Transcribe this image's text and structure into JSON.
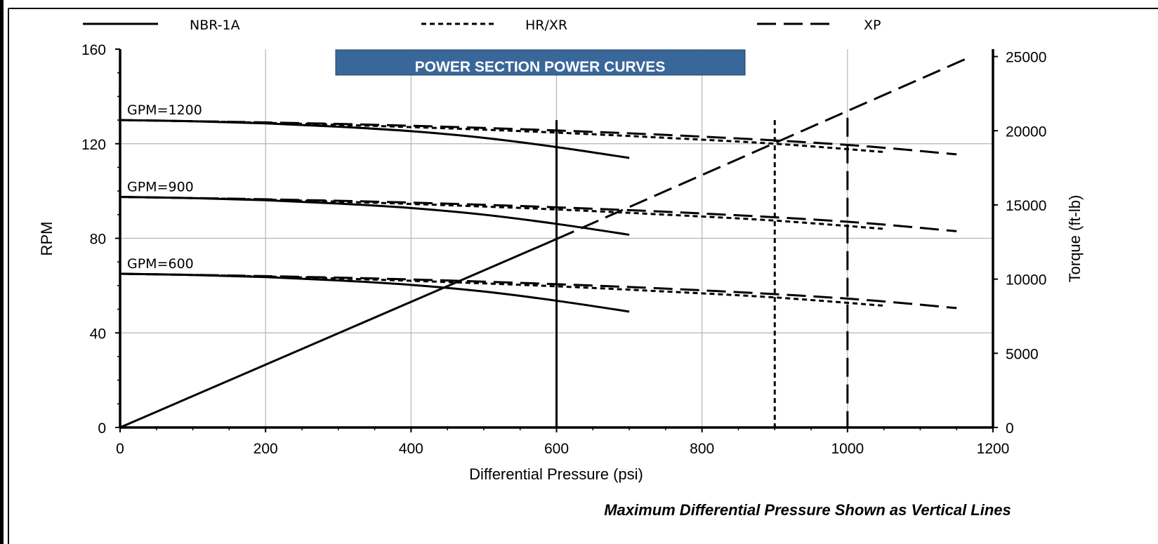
{
  "chart_data": {
    "type": "line",
    "title": "POWER SECTION POWER CURVES",
    "xlabel": "Differential Pressure (psi)",
    "ylabel": "RPM",
    "y2label": "Torque (ft-lb)",
    "xlim": [
      0,
      1200
    ],
    "ylim": [
      0,
      160
    ],
    "y2lim": [
      0,
      25500
    ],
    "x_ticks": [
      0,
      200,
      400,
      600,
      800,
      1000,
      1200
    ],
    "y_ticks": [
      0,
      40,
      80,
      120,
      160
    ],
    "y2_ticks": [
      0,
      5000,
      10000,
      15000,
      20000,
      25000
    ],
    "x_tick_labels": [
      "0",
      "200",
      "400",
      "600",
      "800",
      "1000",
      "1200"
    ],
    "y_tick_labels": [
      "0",
      "40",
      "80",
      "120",
      "160"
    ],
    "y2_tick_labels": [
      "0",
      "5000",
      "10000",
      "15000",
      "20000",
      "25000"
    ],
    "grid": true,
    "legend_position": "top",
    "legend": [
      {
        "label": "NBR-1A",
        "style": "solid"
      },
      {
        "label": "HR/XR",
        "style": "dotted"
      },
      {
        "label": "XP",
        "style": "dashed"
      }
    ],
    "flow_labels": [
      {
        "text": "GPM=1200",
        "rpm": 130
      },
      {
        "text": "GPM=900",
        "rpm": 97.5
      },
      {
        "text": "GPM=600",
        "rpm": 65
      }
    ],
    "rpm_curves": [
      {
        "name": "NBR-1A",
        "gpm": 1200,
        "x": [
          0,
          100,
          200,
          300,
          400,
          500,
          600,
          700
        ],
        "y": [
          130,
          129.5,
          128.6,
          127.2,
          125.3,
          122.5,
          118.6,
          114
        ]
      },
      {
        "name": "NBR-1A",
        "gpm": 900,
        "x": [
          0,
          100,
          200,
          300,
          400,
          500,
          600,
          700
        ],
        "y": [
          97.5,
          97,
          96.1,
          94.7,
          92.8,
          90,
          86.1,
          81.5
        ]
      },
      {
        "name": "NBR-1A",
        "gpm": 600,
        "x": [
          0,
          100,
          200,
          300,
          400,
          500,
          600,
          700
        ],
        "y": [
          65,
          64.5,
          63.6,
          62.2,
          60.3,
          57.5,
          53.6,
          49
        ]
      },
      {
        "name": "HR/XR",
        "gpm": 1200,
        "x": [
          0,
          150,
          300,
          450,
          600,
          750,
          900,
          1050
        ],
        "y": [
          130,
          129.2,
          128,
          126.5,
          124.7,
          122.5,
          120,
          116.5
        ]
      },
      {
        "name": "HR/XR",
        "gpm": 900,
        "x": [
          0,
          150,
          300,
          450,
          600,
          750,
          900,
          1050
        ],
        "y": [
          97.5,
          96.7,
          95.5,
          94,
          92.2,
          90,
          87.5,
          84
        ]
      },
      {
        "name": "HR/XR",
        "gpm": 600,
        "x": [
          0,
          150,
          300,
          450,
          600,
          750,
          900,
          1050
        ],
        "y": [
          65,
          64.2,
          63,
          61.5,
          59.7,
          57.5,
          55,
          51.5
        ]
      },
      {
        "name": "XP",
        "gpm": 1200,
        "x": [
          0,
          200,
          400,
          600,
          800,
          1000,
          1150
        ],
        "y": [
          130,
          129,
          127.6,
          125.6,
          123,
          119.5,
          115.5
        ]
      },
      {
        "name": "XP",
        "gpm": 900,
        "x": [
          0,
          200,
          400,
          600,
          800,
          1000,
          1150
        ],
        "y": [
          97.5,
          96.5,
          95.1,
          93.1,
          90.5,
          87,
          83
        ]
      },
      {
        "name": "XP",
        "gpm": 600,
        "x": [
          0,
          200,
          400,
          600,
          800,
          1000,
          1150
        ],
        "y": [
          65,
          64,
          62.6,
          60.6,
          58,
          54.5,
          50.5
        ]
      }
    ],
    "torque_lines": [
      {
        "name": "NBR-1A",
        "x": [
          0,
          600
        ],
        "y2": [
          0,
          12700
        ]
      },
      {
        "name": "XP",
        "x": [
          600,
          1170
        ],
        "y2": [
          12700,
          25000
        ]
      }
    ],
    "max_pressure_lines": [
      {
        "name": "NBR-1A",
        "x": 600,
        "rpm_top": 130
      },
      {
        "name": "HR/XR",
        "x": 900,
        "rpm_top": 130
      },
      {
        "name": "XP",
        "x": 1000,
        "rpm_top": 131
      }
    ],
    "annotation": "Maximum Differential Pressure Shown as Vertical Lines"
  }
}
